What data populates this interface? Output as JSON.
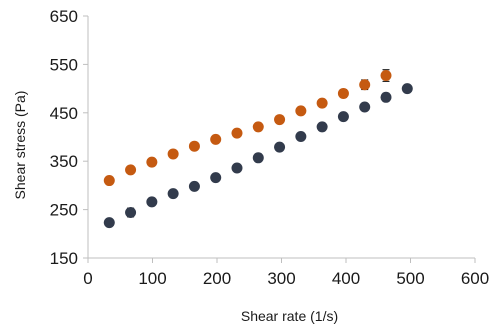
{
  "chart_data": {
    "type": "scatter",
    "title": "",
    "xlabel": "Shear rate (1/s)",
    "ylabel": "Shear stress (Pa)",
    "xlim": [
      0,
      600
    ],
    "ylim": [
      150,
      650
    ],
    "x_ticks": [
      0,
      100,
      200,
      300,
      400,
      500,
      600
    ],
    "y_ticks": [
      150,
      250,
      350,
      450,
      550,
      650
    ],
    "grid": false,
    "legend": "none",
    "series": [
      {
        "color": "#C55A11",
        "x": [
          33,
          66,
          99,
          132,
          165,
          198,
          231,
          264,
          297,
          330,
          363,
          396,
          429,
          462
        ],
        "y": [
          310,
          332,
          348,
          365,
          381,
          395,
          408,
          421,
          436,
          454,
          470,
          490,
          508,
          527
        ],
        "error": [
          4,
          4,
          4,
          4,
          4,
          4,
          5,
          5,
          5,
          6,
          6,
          8,
          10,
          12
        ]
      },
      {
        "color": "#323B4C",
        "x": [
          33,
          66,
          99,
          132,
          165,
          198,
          231,
          264,
          297,
          330,
          363,
          396,
          429,
          462,
          495
        ],
        "y": [
          223,
          244,
          266,
          283,
          298,
          316,
          336,
          357,
          379,
          401,
          421,
          442,
          462,
          482,
          500
        ],
        "error": [
          4,
          9,
          4,
          4,
          4,
          4,
          4,
          4,
          4,
          4,
          4,
          4,
          4,
          5,
          4
        ]
      }
    ]
  }
}
